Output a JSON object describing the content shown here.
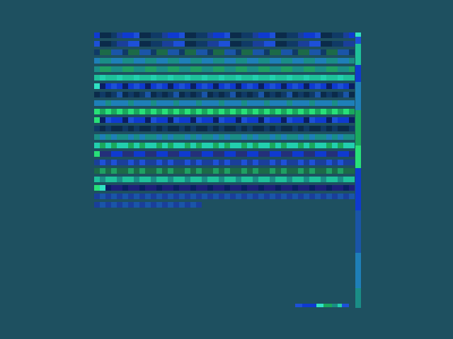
{
  "colors": {
    "background": "#1e5060",
    "palette": [
      "#0a1e62",
      "#0b2b4a",
      "#08307a",
      "#103a66",
      "#1a55a8",
      "#1d50d8",
      "#0f3ad0",
      "#1a3f9a",
      "#1e7fb8",
      "#1a8d86",
      "#1f9f62",
      "#1aa85c",
      "#1ec09a",
      "#22cfae",
      "#28e078",
      "#2fe2c4",
      "#1c6a48",
      "#24307a",
      "#1e1f7a"
    ]
  },
  "tile_grid": {
    "rows": [
      [
        6,
        1,
        1,
        3,
        7,
        6,
        6,
        5,
        1,
        1,
        3,
        3,
        7,
        6,
        6,
        5,
        1,
        1,
        3,
        3,
        7,
        6,
        6,
        5,
        1,
        1,
        3,
        3,
        7,
        6,
        6,
        5,
        1,
        1,
        3,
        3,
        7,
        6,
        6,
        5,
        1,
        1,
        3,
        3,
        7,
        6
      ],
      [
        5,
        1,
        1,
        3,
        7,
        7,
        5,
        5,
        1,
        1,
        3,
        3,
        7,
        7,
        5,
        5,
        1,
        1,
        3,
        3,
        7,
        7,
        5,
        5,
        1,
        1,
        3,
        3,
        7,
        7,
        5,
        5,
        1,
        1,
        3,
        3,
        7,
        7,
        5,
        5,
        1,
        1,
        3,
        3,
        7,
        7
      ],
      [
        3,
        16,
        16,
        4,
        4,
        3,
        16,
        16,
        4,
        4,
        3,
        16,
        16,
        4,
        4,
        3,
        16,
        16,
        4,
        4,
        3,
        16,
        16,
        4,
        4,
        3,
        16,
        16,
        4,
        4,
        3,
        16,
        16,
        4,
        4,
        3,
        16,
        16,
        4,
        4,
        3,
        16,
        16,
        4,
        4,
        3
      ],
      [
        8,
        9,
        9,
        8,
        8,
        9,
        9,
        8,
        8,
        9,
        9,
        8,
        8,
        9,
        9,
        8,
        8,
        9,
        9,
        8,
        8,
        9,
        9,
        8,
        8,
        9,
        9,
        8,
        8,
        9,
        9,
        8,
        8,
        9,
        9,
        8,
        8,
        9,
        9,
        8,
        8,
        9,
        9,
        8,
        8,
        9
      ],
      [
        9,
        10,
        10,
        9,
        9,
        10,
        10,
        9,
        9,
        10,
        10,
        9,
        9,
        10,
        10,
        9,
        9,
        10,
        10,
        9,
        9,
        10,
        10,
        9,
        9,
        10,
        10,
        9,
        9,
        10,
        10,
        9,
        9,
        10,
        10,
        9,
        9,
        10,
        10,
        9,
        9,
        10,
        10,
        9,
        9,
        10
      ],
      [
        12,
        13,
        12,
        12,
        13,
        12,
        12,
        13,
        12,
        12,
        13,
        12,
        12,
        13,
        12,
        12,
        13,
        12,
        12,
        13,
        12,
        12,
        13,
        12,
        12,
        13,
        12,
        12,
        13,
        12,
        12,
        13,
        12,
        12,
        13,
        12,
        12,
        13,
        12,
        12,
        13,
        12,
        12,
        13,
        12,
        12
      ],
      [
        15,
        0,
        6,
        5,
        6,
        0,
        6,
        5,
        6,
        0,
        6,
        5,
        6,
        0,
        6,
        5,
        6,
        0,
        6,
        5,
        6,
        0,
        6,
        5,
        6,
        0,
        6,
        5,
        6,
        0,
        6,
        5,
        6,
        0,
        6,
        5,
        6,
        0,
        6,
        5,
        6,
        0,
        6,
        5,
        6,
        0
      ],
      [
        1,
        3,
        1,
        3,
        4,
        1,
        3,
        1,
        3,
        4,
        1,
        3,
        1,
        3,
        4,
        1,
        3,
        1,
        3,
        4,
        1,
        3,
        1,
        3,
        4,
        1,
        3,
        1,
        3,
        4,
        1,
        3,
        1,
        3,
        4,
        1,
        3,
        1,
        3,
        4,
        1,
        3,
        1,
        3,
        4,
        1
      ],
      [
        8,
        8,
        9,
        8,
        8,
        8,
        9,
        8,
        8,
        8,
        9,
        8,
        8,
        8,
        9,
        8,
        8,
        8,
        9,
        8,
        8,
        8,
        9,
        8,
        8,
        8,
        9,
        8,
        8,
        8,
        9,
        8,
        8,
        8,
        9,
        8,
        8,
        8,
        9,
        8,
        8,
        8,
        9,
        8,
        8,
        8
      ],
      [
        14,
        11,
        14,
        11,
        14,
        11,
        14,
        11,
        14,
        11,
        14,
        11,
        14,
        11,
        14,
        11,
        14,
        11,
        14,
        11,
        14,
        11,
        14,
        11,
        14,
        11,
        14,
        11,
        14,
        11,
        14,
        11,
        14,
        11,
        14,
        11,
        14,
        11,
        14,
        11,
        14,
        11,
        14,
        11,
        14,
        11
      ],
      [
        14,
        0,
        5,
        6,
        6,
        0,
        5,
        6,
        6,
        0,
        5,
        6,
        6,
        0,
        5,
        6,
        6,
        0,
        5,
        6,
        6,
        0,
        5,
        6,
        6,
        0,
        5,
        6,
        6,
        0,
        5,
        6,
        6,
        0,
        5,
        6,
        6,
        0,
        5,
        6,
        6,
        0,
        5,
        6,
        6,
        0
      ],
      [
        3,
        1,
        3,
        1,
        1,
        3,
        1,
        3,
        1,
        1,
        3,
        1,
        3,
        1,
        1,
        3,
        1,
        3,
        1,
        1,
        3,
        1,
        3,
        1,
        1,
        3,
        1,
        3,
        1,
        1,
        3,
        1,
        3,
        1,
        1,
        3,
        1,
        3,
        1,
        1,
        3,
        1,
        3,
        1,
        1,
        3
      ],
      [
        9,
        8,
        9,
        8,
        9,
        9,
        8,
        9,
        8,
        9,
        9,
        8,
        9,
        8,
        9,
        9,
        8,
        9,
        8,
        9,
        9,
        8,
        9,
        8,
        9,
        9,
        8,
        9,
        8,
        9,
        9,
        8,
        9,
        8,
        9,
        9,
        8,
        9,
        8,
        9,
        9,
        8,
        9,
        8,
        9,
        9
      ],
      [
        13,
        11,
        13,
        11,
        13,
        13,
        11,
        13,
        11,
        13,
        13,
        11,
        13,
        11,
        13,
        13,
        11,
        13,
        11,
        13,
        13,
        11,
        13,
        11,
        13,
        13,
        11,
        13,
        11,
        13,
        13,
        11,
        13,
        11,
        13,
        13,
        11,
        13,
        11,
        13,
        13,
        11,
        13,
        11,
        13,
        13
      ],
      [
        14,
        17,
        17,
        6,
        6,
        17,
        17,
        6,
        6,
        17,
        17,
        6,
        6,
        17,
        17,
        6,
        6,
        17,
        17,
        6,
        6,
        17,
        17,
        6,
        6,
        17,
        17,
        6,
        6,
        17,
        17,
        6,
        6,
        17,
        17,
        6,
        6,
        17,
        17,
        6,
        6,
        17,
        17,
        6,
        6,
        17
      ],
      [
        7,
        5,
        7,
        5,
        7,
        7,
        5,
        7,
        5,
        7,
        7,
        5,
        7,
        5,
        7,
        7,
        5,
        7,
        5,
        7,
        7,
        5,
        7,
        5,
        7,
        7,
        5,
        7,
        5,
        7,
        7,
        5,
        7,
        5,
        7,
        7,
        5,
        7,
        5,
        7,
        7,
        5,
        7,
        5,
        7,
        7
      ],
      [
        16,
        10,
        16,
        10,
        16,
        16,
        10,
        16,
        10,
        16,
        16,
        10,
        16,
        10,
        16,
        16,
        10,
        16,
        10,
        16,
        16,
        10,
        16,
        10,
        16,
        16,
        10,
        16,
        10,
        16,
        16,
        10,
        16,
        10,
        16,
        16,
        10,
        16,
        10,
        16,
        16,
        10,
        16,
        10,
        16,
        16
      ],
      [
        12,
        9,
        12,
        12,
        9,
        12,
        12,
        9,
        12,
        12,
        9,
        12,
        12,
        9,
        12,
        12,
        9,
        12,
        12,
        9,
        12,
        12,
        9,
        12,
        12,
        9,
        12,
        12,
        9,
        12,
        12,
        9,
        12,
        12,
        9,
        12,
        12,
        9,
        12,
        12,
        9,
        12,
        12,
        9,
        12,
        12
      ],
      [
        14,
        15,
        0,
        18,
        18,
        0,
        18,
        18,
        0,
        18,
        18,
        0,
        18,
        18,
        0,
        18,
        18,
        0,
        18,
        18,
        0,
        18,
        18,
        0,
        18,
        18,
        0,
        18,
        18,
        0,
        18,
        18,
        0,
        18,
        18,
        0,
        18,
        18,
        0,
        18,
        18,
        0,
        18,
        18,
        0,
        18
      ],
      [
        7,
        4,
        7,
        4,
        7,
        4,
        7,
        4,
        7,
        4,
        7,
        4,
        7,
        4,
        7,
        4,
        7,
        4,
        7,
        4,
        7,
        4,
        7,
        4,
        7,
        4,
        7,
        4,
        7,
        4,
        7,
        4,
        7,
        4,
        7,
        4,
        7,
        4,
        7,
        4,
        7,
        4,
        7,
        4,
        7,
        4
      ]
    ],
    "partial_rows": [
      [
        7,
        4,
        7,
        4,
        7,
        4,
        7,
        4,
        7,
        4,
        7,
        4,
        7,
        4,
        7,
        4,
        7,
        4,
        7
      ]
    ]
  },
  "scrollbar_strip": [
    {
      "color": "#2fe2c4",
      "length": 6
    },
    {
      "color": "#1d50d8",
      "length": 10
    },
    {
      "color": "#1ec09a",
      "length": 30
    },
    {
      "color": "#0f3ad0",
      "length": 24
    },
    {
      "color": "#1e7fb8",
      "length": 40
    },
    {
      "color": "#1aa85c",
      "length": 50
    },
    {
      "color": "#28e078",
      "length": 32
    },
    {
      "color": "#0f3ad0",
      "length": 60
    },
    {
      "color": "#1a55a8",
      "length": 60
    },
    {
      "color": "#1e7fb8",
      "length": 50
    },
    {
      "color": "#1a8d86",
      "length": 28
    }
  ],
  "status_strip": [
    {
      "color": "#1d50d8",
      "length": 10
    },
    {
      "color": "#0f3ad0",
      "length": 20
    },
    {
      "color": "#2fe2c4",
      "length": 10
    },
    {
      "color": "#1aa85c",
      "length": 12
    },
    {
      "color": "#1a8d86",
      "length": 8
    },
    {
      "color": "#22cfae",
      "length": 6
    },
    {
      "color": "#1d50d8",
      "length": 10
    }
  ]
}
